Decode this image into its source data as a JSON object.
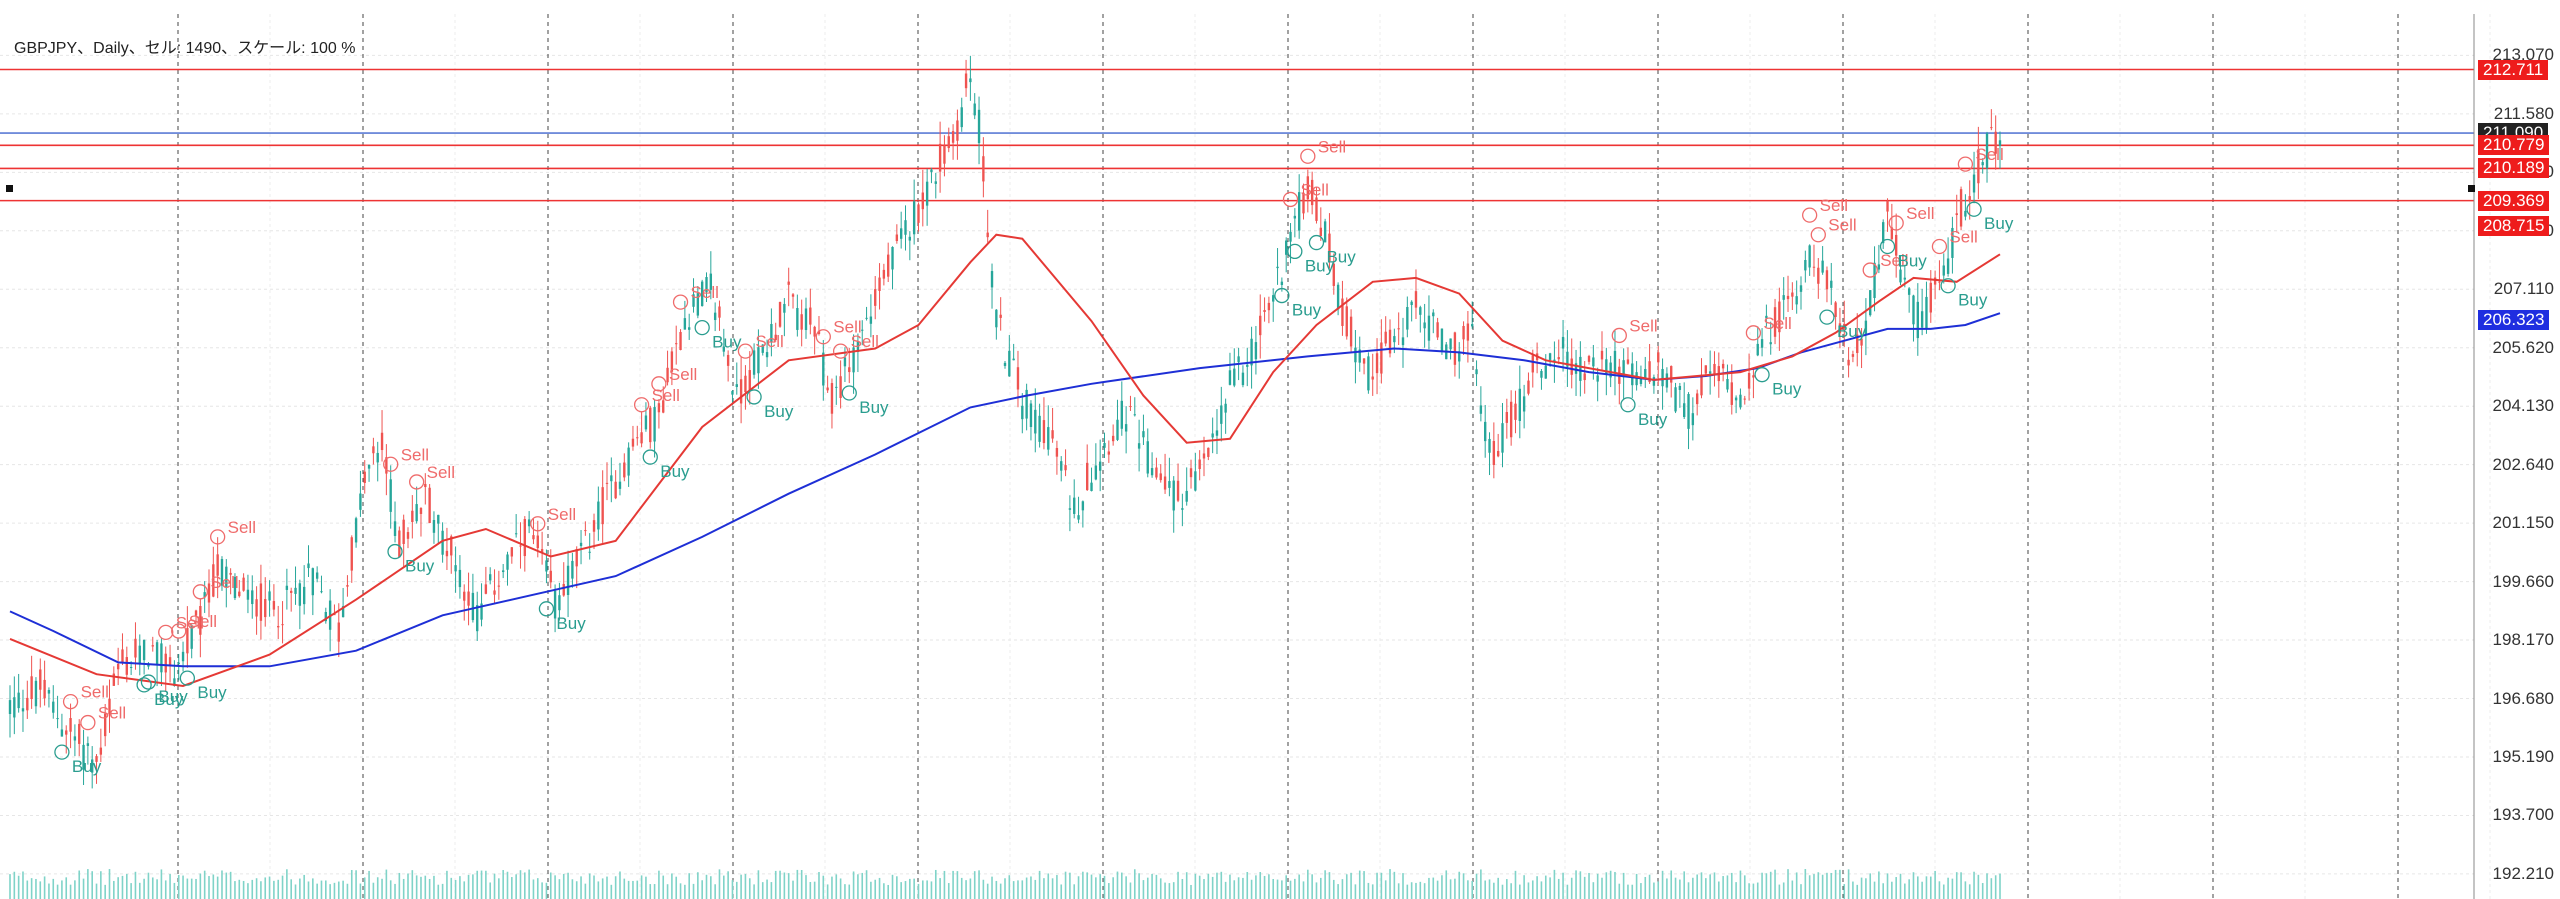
{
  "chart_info": "GBPJPY、Daily、セル: 1490、スケール: 100 %",
  "colors": {
    "bull": "#26a69a",
    "bear": "#ef5350",
    "ma_fast": "#e53935",
    "ma_slow": "#1e2fd6",
    "hline_red": "#ee3333",
    "hline_blue": "#5b7bd5",
    "sell_text": "#ef6b6b",
    "buy_text": "#2a9d8f",
    "tag_dark": "#222222",
    "tag_red": "#ee1c1c",
    "tag_blue": "#1f2ee0"
  },
  "chart_data": {
    "type": "candlestick",
    "symbol": "GBPJPY",
    "timeframe": "Daily",
    "ylim": [
      191.8,
      214.1
    ],
    "grid": true,
    "y_ticks": [
      "213.070",
      "211.580",
      "210.090",
      "208.600",
      "207.110",
      "205.620",
      "204.130",
      "202.640",
      "201.150",
      "199.660",
      "198.170",
      "196.680",
      "195.190",
      "193.700",
      "192.210"
    ],
    "close_path": [
      [
        0,
        196.5
      ],
      [
        7,
        196.9
      ],
      [
        14,
        195.8
      ],
      [
        20,
        195.0
      ],
      [
        25,
        197.4
      ],
      [
        32,
        197.9
      ],
      [
        38,
        197.4
      ],
      [
        44,
        198.6
      ],
      [
        48,
        200.0
      ],
      [
        55,
        199.2
      ],
      [
        62,
        198.9
      ],
      [
        70,
        199.8
      ],
      [
        76,
        198.4
      ],
      [
        82,
        202.3
      ],
      [
        86,
        203.1
      ],
      [
        90,
        200.6
      ],
      [
        96,
        201.8
      ],
      [
        102,
        200.4
      ],
      [
        108,
        198.8
      ],
      [
        114,
        200.0
      ],
      [
        120,
        200.9
      ],
      [
        126,
        199.2
      ],
      [
        132,
        200.3
      ],
      [
        138,
        201.8
      ],
      [
        144,
        203.1
      ],
      [
        150,
        203.9
      ],
      [
        156,
        206.4
      ],
      [
        162,
        207.2
      ],
      [
        168,
        204.3
      ],
      [
        174,
        205.6
      ],
      [
        180,
        206.8
      ],
      [
        186,
        206.0
      ],
      [
        190,
        204.2
      ],
      [
        196,
        205.8
      ],
      [
        202,
        207.3
      ],
      [
        208,
        208.8
      ],
      [
        212,
        209.7
      ],
      [
        218,
        210.9
      ],
      [
        222,
        212.5
      ],
      [
        224,
        211.3
      ],
      [
        228,
        206.3
      ],
      [
        234,
        204.3
      ],
      [
        240,
        203.5
      ],
      [
        246,
        201.5
      ],
      [
        252,
        203.0
      ],
      [
        258,
        204.0
      ],
      [
        264,
        202.6
      ],
      [
        270,
        201.8
      ],
      [
        276,
        202.5
      ],
      [
        282,
        204.6
      ],
      [
        288,
        205.8
      ],
      [
        292,
        206.9
      ],
      [
        296,
        208.6
      ],
      [
        300,
        209.7
      ],
      [
        304,
        208.5
      ],
      [
        308,
        206.5
      ],
      [
        314,
        205.0
      ],
      [
        320,
        205.8
      ],
      [
        326,
        206.7
      ],
      [
        332,
        205.5
      ],
      [
        338,
        205.8
      ],
      [
        342,
        202.9
      ],
      [
        346,
        203.5
      ],
      [
        352,
        205.0
      ],
      [
        358,
        205.6
      ],
      [
        364,
        205.0
      ],
      [
        370,
        205.3
      ],
      [
        376,
        204.8
      ],
      [
        382,
        205.0
      ],
      [
        388,
        204.0
      ],
      [
        394,
        205.0
      ],
      [
        400,
        204.4
      ],
      [
        406,
        206.0
      ],
      [
        412,
        206.8
      ],
      [
        416,
        208.2
      ],
      [
        420,
        207.2
      ],
      [
        426,
        205.3
      ],
      [
        430,
        206.8
      ],
      [
        434,
        209.0
      ],
      [
        438,
        207.0
      ],
      [
        442,
        206.2
      ],
      [
        448,
        208.0
      ],
      [
        452,
        209.5
      ],
      [
        456,
        210.4
      ],
      [
        458,
        210.9
      ],
      [
        460,
        210.5
      ]
    ],
    "ma_fast": [
      [
        0,
        198.2
      ],
      [
        20,
        197.3
      ],
      [
        40,
        197.0
      ],
      [
        60,
        197.8
      ],
      [
        80,
        199.2
      ],
      [
        100,
        200.7
      ],
      [
        110,
        201.0
      ],
      [
        125,
        200.3
      ],
      [
        140,
        200.7
      ],
      [
        160,
        203.6
      ],
      [
        180,
        205.3
      ],
      [
        200,
        205.6
      ],
      [
        210,
        206.2
      ],
      [
        222,
        207.8
      ],
      [
        228,
        208.5
      ],
      [
        234,
        208.4
      ],
      [
        250,
        206.3
      ],
      [
        262,
        204.4
      ],
      [
        272,
        203.2
      ],
      [
        282,
        203.3
      ],
      [
        292,
        205.0
      ],
      [
        302,
        206.2
      ],
      [
        315,
        207.3
      ],
      [
        325,
        207.4
      ],
      [
        335,
        207.0
      ],
      [
        345,
        205.8
      ],
      [
        355,
        205.3
      ],
      [
        370,
        205.0
      ],
      [
        380,
        204.8
      ],
      [
        390,
        204.9
      ],
      [
        400,
        205.0
      ],
      [
        412,
        205.4
      ],
      [
        422,
        206.0
      ],
      [
        432,
        206.8
      ],
      [
        440,
        207.4
      ],
      [
        450,
        207.3
      ],
      [
        460,
        208.0
      ]
    ],
    "ma_slow": [
      [
        0,
        198.9
      ],
      [
        10,
        198.4
      ],
      [
        25,
        197.6
      ],
      [
        40,
        197.5
      ],
      [
        60,
        197.5
      ],
      [
        80,
        197.9
      ],
      [
        100,
        198.8
      ],
      [
        120,
        199.3
      ],
      [
        140,
        199.8
      ],
      [
        160,
        200.8
      ],
      [
        180,
        201.9
      ],
      [
        200,
        202.9
      ],
      [
        222,
        204.1
      ],
      [
        235,
        204.4
      ],
      [
        250,
        204.7
      ],
      [
        275,
        205.1
      ],
      [
        300,
        205.4
      ],
      [
        320,
        205.6
      ],
      [
        335,
        205.5
      ],
      [
        350,
        205.3
      ],
      [
        365,
        205.0
      ],
      [
        380,
        204.8
      ],
      [
        392,
        204.9
      ],
      [
        404,
        205.1
      ],
      [
        414,
        205.5
      ],
      [
        424,
        205.8
      ],
      [
        434,
        206.1
      ],
      [
        444,
        206.1
      ],
      [
        452,
        206.2
      ],
      [
        460,
        206.5
      ]
    ],
    "horizontal_lines": [
      {
        "price": 212.711,
        "color": "red"
      },
      {
        "price": 211.09,
        "color": "blue"
      },
      {
        "price": 210.779,
        "color": "red"
      },
      {
        "price": 210.189,
        "color": "red"
      },
      {
        "price": 209.369,
        "color": "red"
      }
    ],
    "signals": [
      {
        "i": 14,
        "type": "Sell"
      },
      {
        "i": 12,
        "type": "Buy"
      },
      {
        "i": 18,
        "type": "Sell"
      },
      {
        "i": 31,
        "type": "Buy"
      },
      {
        "i": 32,
        "type": "Buy"
      },
      {
        "i": 36,
        "type": "Sell"
      },
      {
        "i": 39,
        "type": "Sell"
      },
      {
        "i": 41,
        "type": "Buy"
      },
      {
        "i": 44,
        "type": "Sell"
      },
      {
        "i": 48,
        "type": "Sell"
      },
      {
        "i": 88,
        "type": "Sell"
      },
      {
        "i": 94,
        "type": "Sell"
      },
      {
        "i": 89,
        "type": "Buy"
      },
      {
        "i": 122,
        "type": "Sell"
      },
      {
        "i": 124,
        "type": "Buy"
      },
      {
        "i": 146,
        "type": "Sell"
      },
      {
        "i": 148,
        "type": "Buy"
      },
      {
        "i": 150,
        "type": "Sell"
      },
      {
        "i": 155,
        "type": "Sell"
      },
      {
        "i": 160,
        "type": "Buy"
      },
      {
        "i": 170,
        "type": "Sell"
      },
      {
        "i": 172,
        "type": "Buy"
      },
      {
        "i": 188,
        "type": "Sell"
      },
      {
        "i": 192,
        "type": "Sell"
      },
      {
        "i": 194,
        "type": "Buy"
      },
      {
        "i": 296,
        "type": "Sell"
      },
      {
        "i": 300,
        "type": "Sell"
      },
      {
        "i": 297,
        "type": "Buy"
      },
      {
        "i": 302,
        "type": "Buy"
      },
      {
        "i": 294,
        "type": "Buy"
      },
      {
        "i": 372,
        "type": "Sell"
      },
      {
        "i": 374,
        "type": "Buy"
      },
      {
        "i": 403,
        "type": "Sell"
      },
      {
        "i": 405,
        "type": "Buy"
      },
      {
        "i": 416,
        "type": "Sell"
      },
      {
        "i": 418,
        "type": "Sell"
      },
      {
        "i": 420,
        "type": "Buy"
      },
      {
        "i": 430,
        "type": "Sell"
      },
      {
        "i": 436,
        "type": "Sell"
      },
      {
        "i": 434,
        "type": "Buy"
      },
      {
        "i": 446,
        "type": "Sell"
      },
      {
        "i": 448,
        "type": "Buy"
      },
      {
        "i": 452,
        "type": "Sell"
      },
      {
        "i": 454,
        "type": "Buy"
      }
    ],
    "price_tags": [
      {
        "text": "213.070",
        "price": 213.07,
        "style": "plain"
      },
      {
        "text": "212.711",
        "price": 212.711,
        "style": "red"
      },
      {
        "text": "211.580",
        "price": 211.58,
        "style": "plain"
      },
      {
        "text": "211.090",
        "price": 211.09,
        "style": "dark"
      },
      {
        "text": "210.779",
        "price": 210.779,
        "style": "red"
      },
      {
        "text": "210.189",
        "price": 210.189,
        "style": "red"
      },
      {
        "text": "209.369",
        "price": 209.369,
        "style": "red"
      },
      {
        "text": "208.715",
        "price": 208.715,
        "style": "red"
      },
      {
        "text": "206.323",
        "price": 206.323,
        "style": "blue"
      }
    ]
  }
}
